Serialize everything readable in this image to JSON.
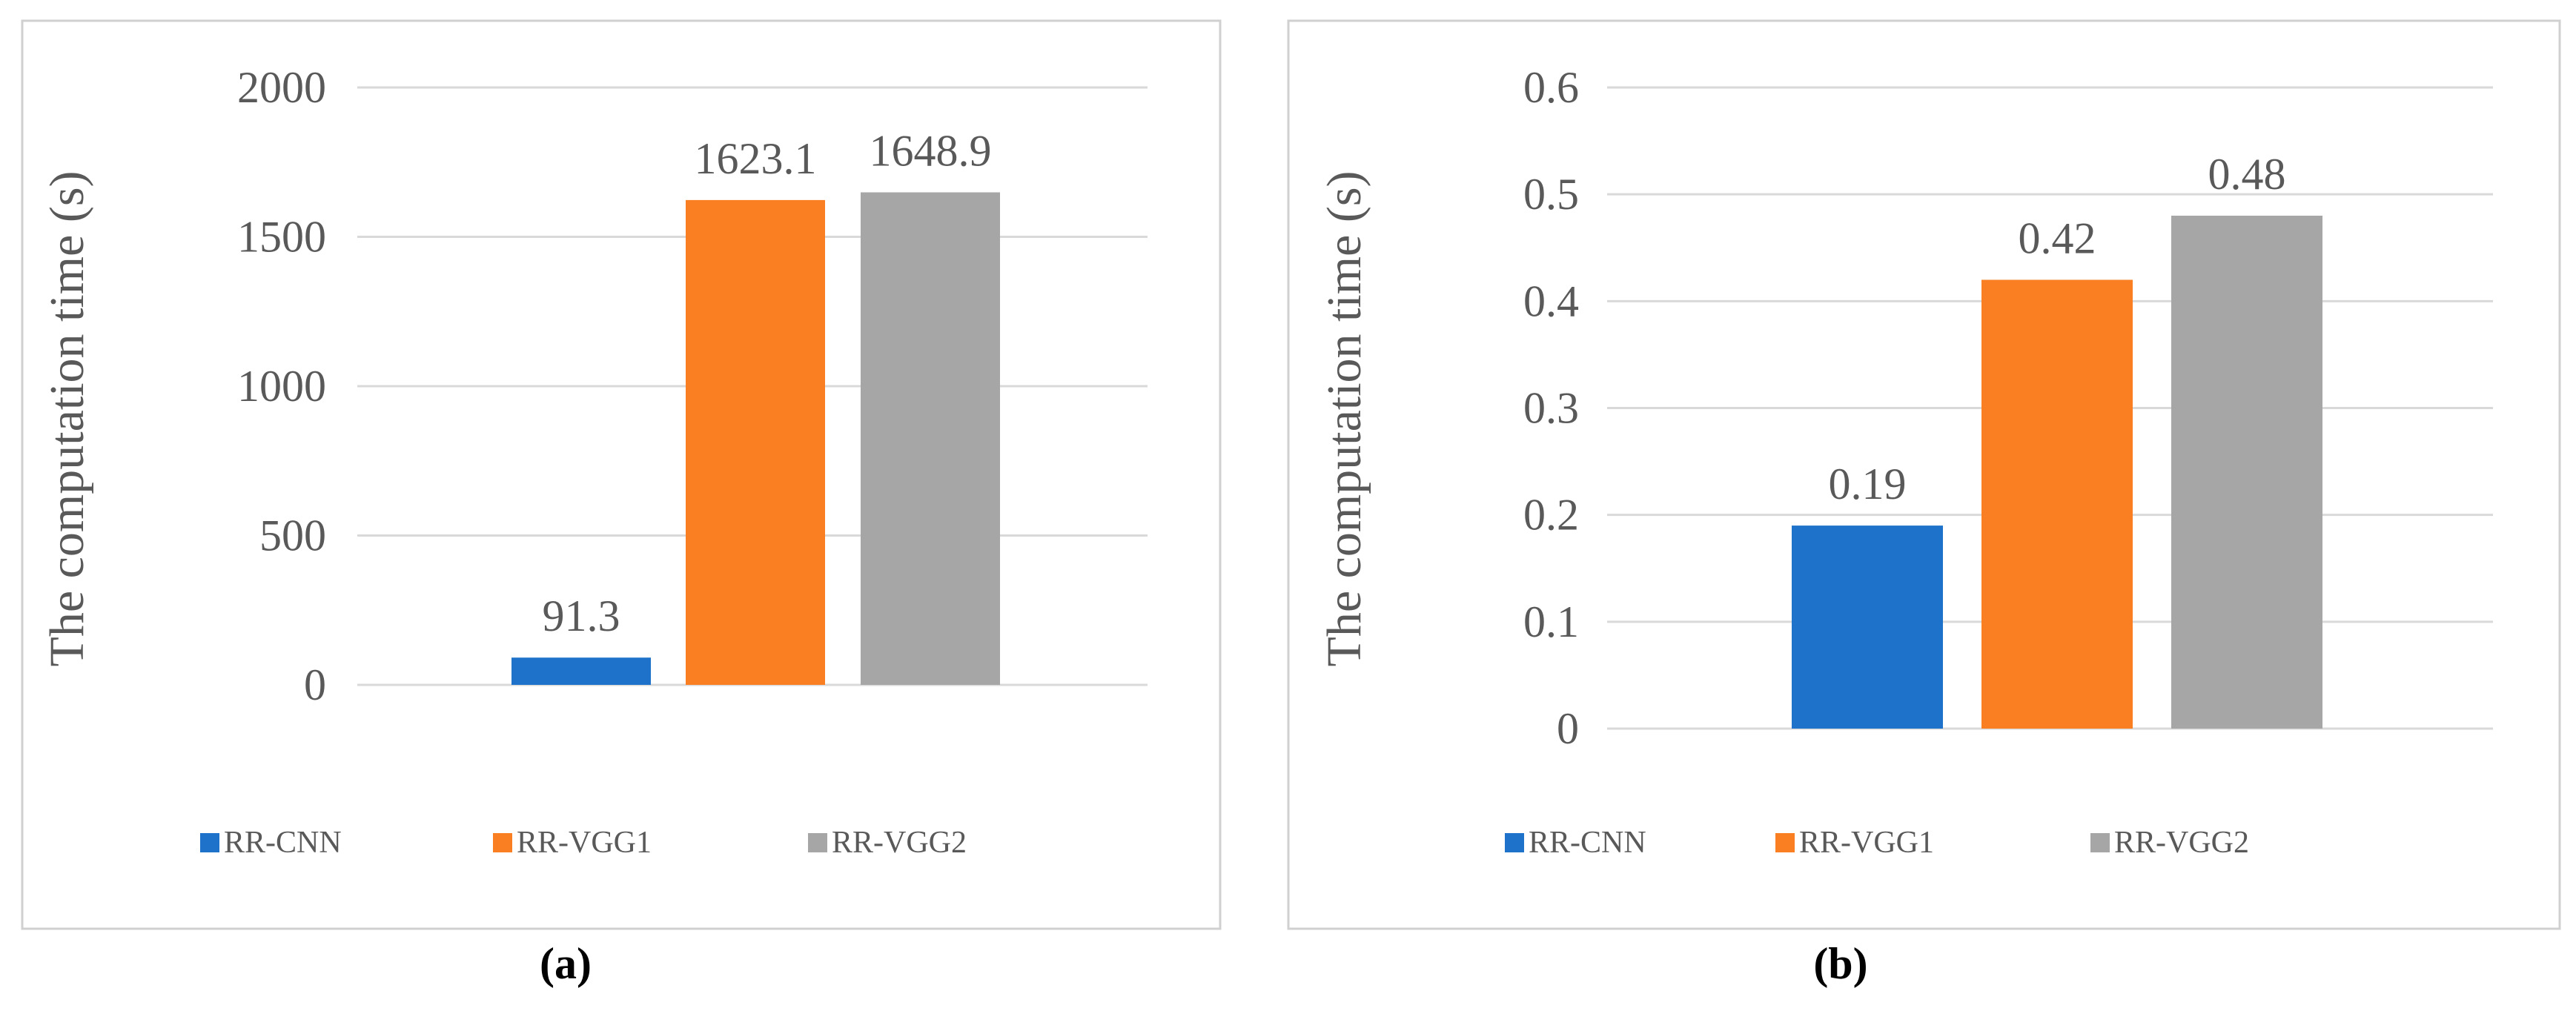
{
  "colors": {
    "blue": "#1f72c9",
    "orange": "#f97f22",
    "gray": "#a6a6a6",
    "grid": "#d9d9d9",
    "border": "#d0d0d0",
    "text": "#595959",
    "caption": "#000000"
  },
  "chart_data": [
    {
      "type": "bar",
      "caption": "(a)",
      "ylabel": "The computation time (s)",
      "xlabel": "",
      "ylim": [
        0,
        2000
      ],
      "yticks": [
        "0",
        "500",
        "1000",
        "1500",
        "2000"
      ],
      "categories": [
        "RR-CNN",
        "RR-VGG1",
        "RR-VGG2"
      ],
      "values": [
        91.3,
        1623.1,
        1648.9
      ],
      "value_labels": [
        "91.3",
        "1623.1",
        "1648.9"
      ],
      "grid": true,
      "legend_position": "bottom"
    },
    {
      "type": "bar",
      "caption": "(b)",
      "ylabel": "The computation time (s)",
      "xlabel": "",
      "ylim": [
        0,
        0.6
      ],
      "yticks": [
        "0",
        "0.1",
        "0.2",
        "0.3",
        "0.4",
        "0.5",
        "0.6"
      ],
      "categories": [
        "RR-CNN",
        "RR-VGG1",
        "RR-VGG2"
      ],
      "values": [
        0.19,
        0.42,
        0.48
      ],
      "value_labels": [
        "0.19",
        "0.42",
        "0.48"
      ],
      "grid": true,
      "legend_position": "bottom"
    }
  ]
}
